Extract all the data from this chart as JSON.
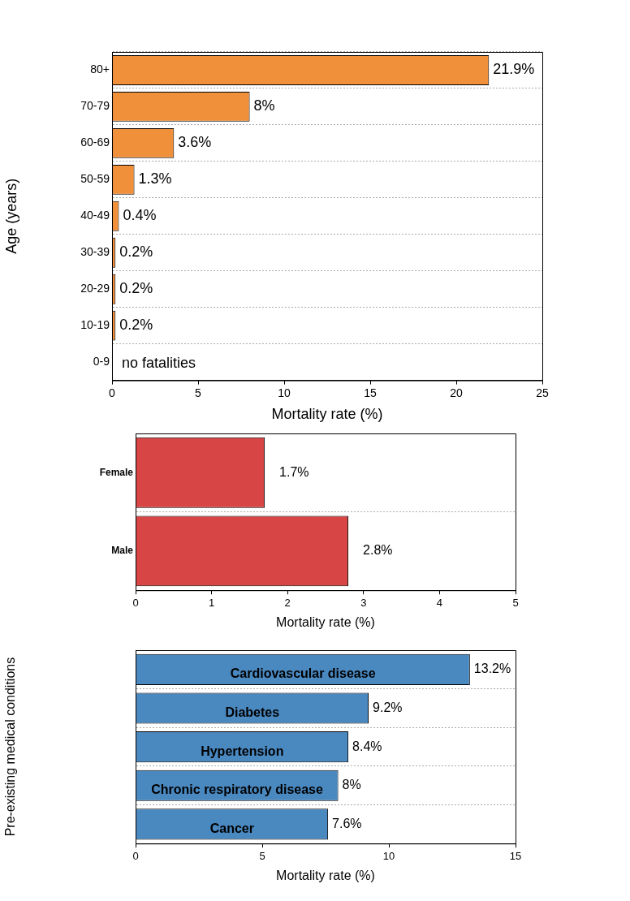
{
  "chart_data": [
    {
      "type": "bar",
      "orientation": "horizontal",
      "categories": [
        "80+",
        "70-79",
        "60-69",
        "50-59",
        "40-49",
        "30-39",
        "20-29",
        "10-19",
        "0-9"
      ],
      "values": [
        21.9,
        8,
        3.6,
        1.3,
        0.4,
        0.2,
        0.2,
        0.2,
        0
      ],
      "value_labels": [
        "21.9%",
        "8%",
        "3.6%",
        "1.3%",
        "0.4%",
        "0.2%",
        "0.2%",
        "0.2%",
        "no fatalities"
      ],
      "color": "#f0903a",
      "xlabel": "Mortality rate (%)",
      "ylabel": "Age (years)",
      "xlim": [
        0,
        25
      ],
      "xticks": [
        0,
        5,
        10,
        15,
        20,
        25
      ],
      "grid": "y",
      "legend": false
    },
    {
      "type": "bar",
      "orientation": "horizontal",
      "categories": [
        "Female",
        "Male"
      ],
      "values": [
        1.7,
        2.8
      ],
      "value_labels": [
        "1.7%",
        "2.8%"
      ],
      "color": "#d84545",
      "xlabel": "Mortality rate (%)",
      "xlim": [
        0,
        5
      ],
      "xticks": [
        0,
        1,
        2,
        3,
        4,
        5
      ],
      "grid": "y",
      "legend": false
    },
    {
      "type": "bar",
      "orientation": "horizontal",
      "categories": [
        "Cardiovascular disease",
        "Diabetes",
        "Hypertension",
        "Chronic respiratory disease",
        "Cancer"
      ],
      "values": [
        13.2,
        9.2,
        8.4,
        8,
        7.6
      ],
      "value_labels": [
        "13.2%",
        "9.2%",
        "8.4%",
        "8%",
        "7.6%"
      ],
      "color": "#4a88c0",
      "xlabel": "Mortality rate (%)",
      "ylabel": "Pre-existing medical conditions",
      "xlim": [
        0,
        15
      ],
      "xticks": [
        0,
        5,
        10,
        15
      ],
      "grid": "y",
      "legend": false,
      "tick_labels": "x"
    }
  ]
}
